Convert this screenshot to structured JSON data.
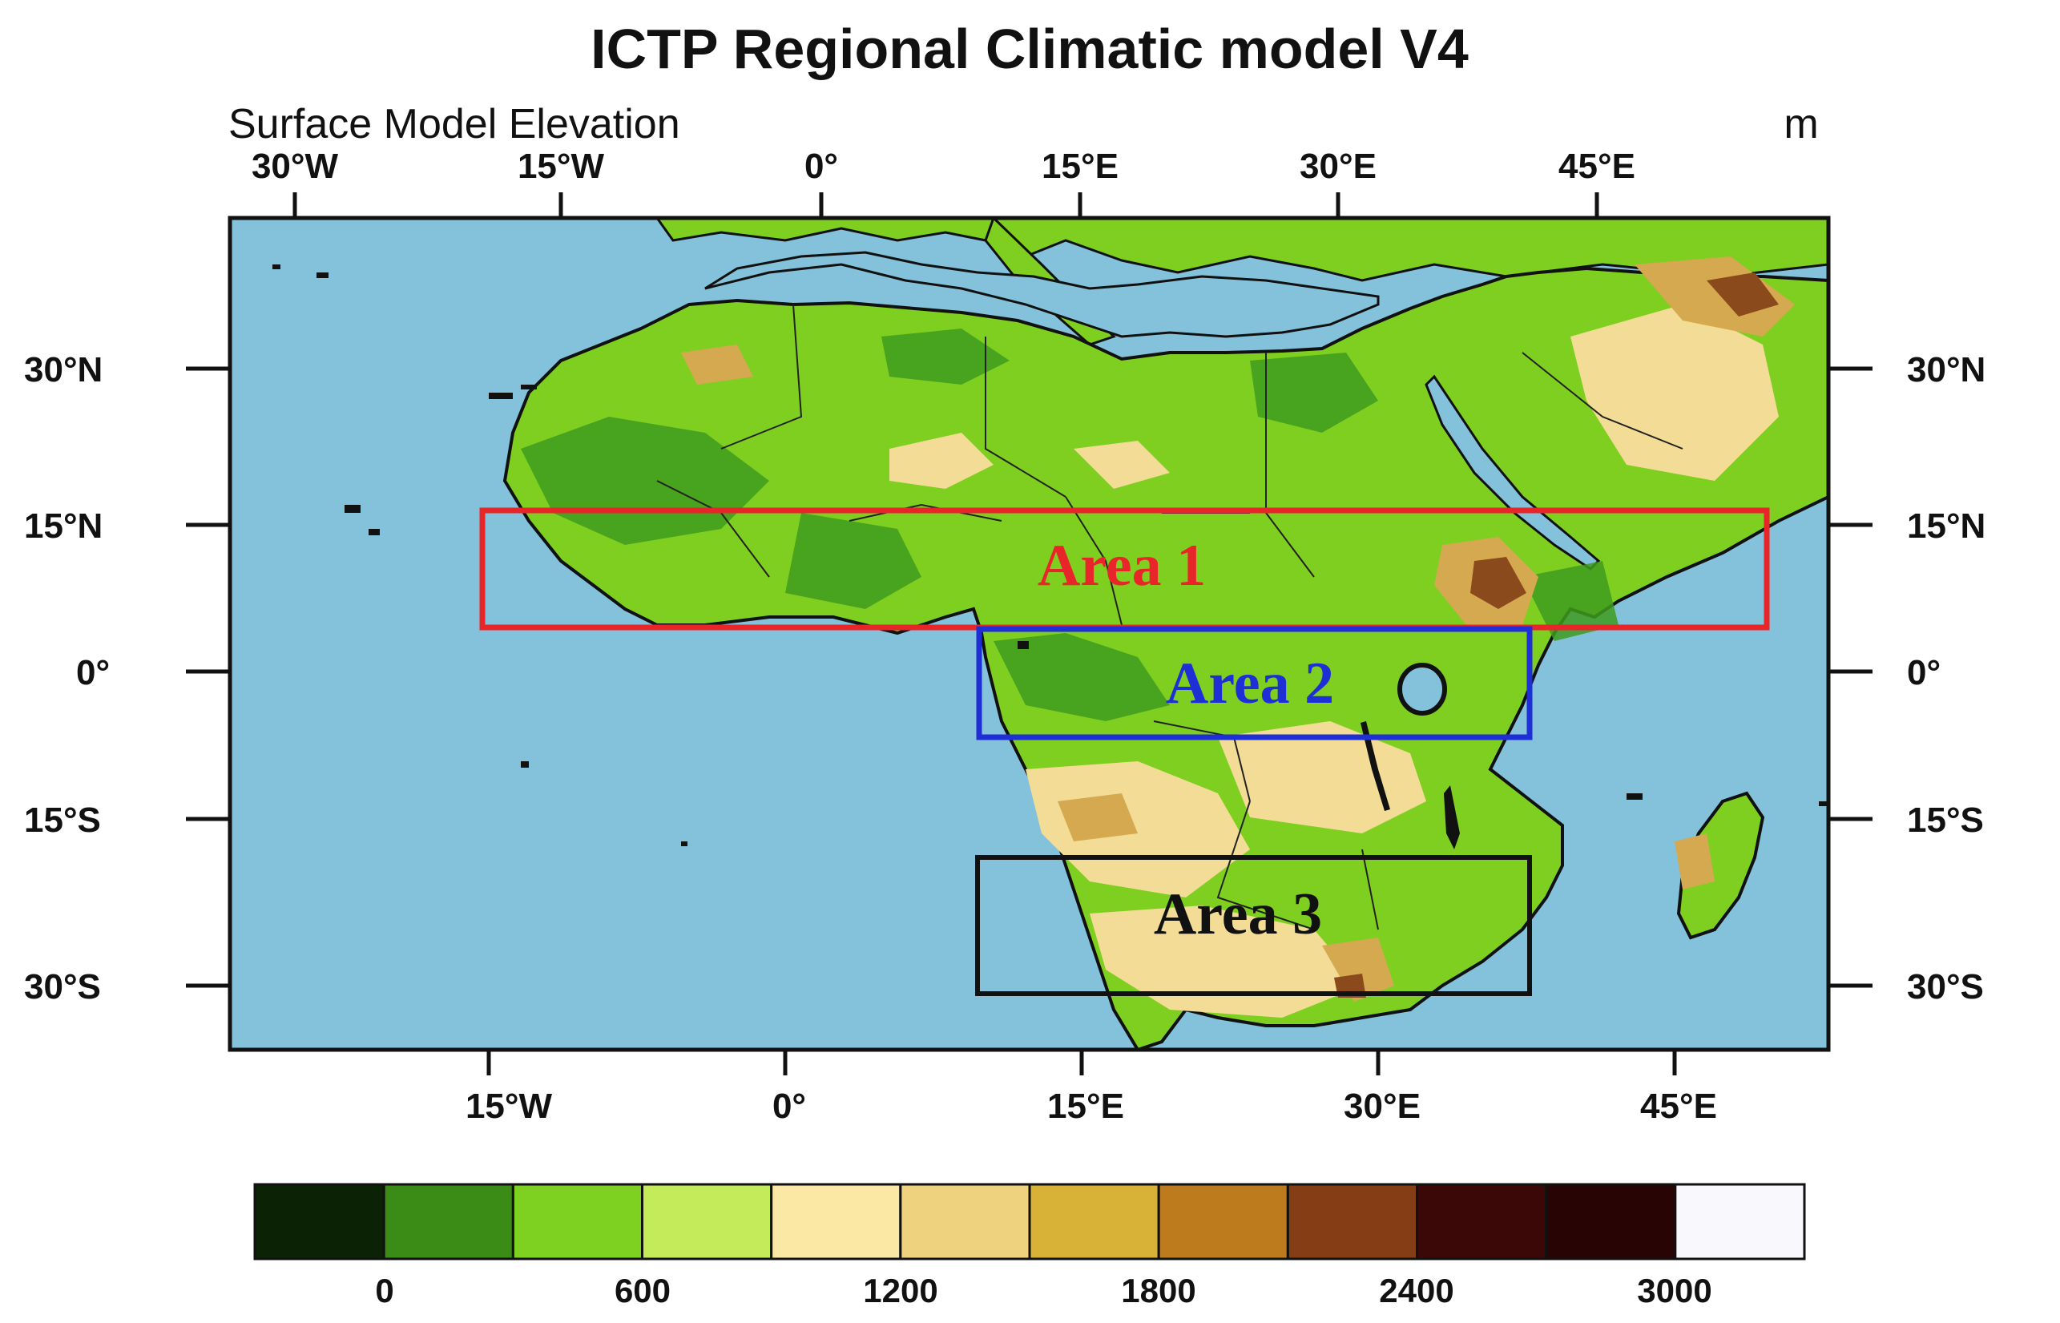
{
  "title": "ICTP Regional Climatic model V4",
  "subtitle": "Surface Model Elevation",
  "unit": "m",
  "axes": {
    "top_ticks": [
      "30°W",
      "15°W",
      "0°",
      "15°E",
      "30°E",
      "45°E"
    ],
    "bottom_ticks": [
      "15°W",
      "0°",
      "15°E",
      "30°E",
      "45°E"
    ],
    "left_ticks": [
      "30°N",
      "15°N",
      "0°",
      "15°S",
      "30°S"
    ],
    "right_ticks": [
      "30°N",
      "15°N",
      "0°",
      "15°S",
      "30°S"
    ]
  },
  "areas": [
    {
      "label": "Area 1",
      "color": "#e8262a"
    },
    {
      "label": "Area 2",
      "color": "#1f2fd6"
    },
    {
      "label": "Area 3",
      "color": "#111111"
    }
  ],
  "colorbar": {
    "colors": [
      "#0b2205",
      "#3b8c16",
      "#7ed021",
      "#c4eb5a",
      "#fbe8a4",
      "#efd27d",
      "#d8b236",
      "#bd7b1e",
      "#843d14",
      "#3c0707",
      "#280404",
      "#f8f8fd"
    ],
    "labels": [
      "0",
      "600",
      "1200",
      "1800",
      "2400",
      "3000"
    ]
  },
  "map_colors": {
    "ocean": "#84c1da",
    "lowland": "#3e9b1f",
    "plain": "#7fcf20",
    "plateau": "#f3dc96",
    "highland": "#d5a94f",
    "mountain": "#8a4a1c"
  }
}
